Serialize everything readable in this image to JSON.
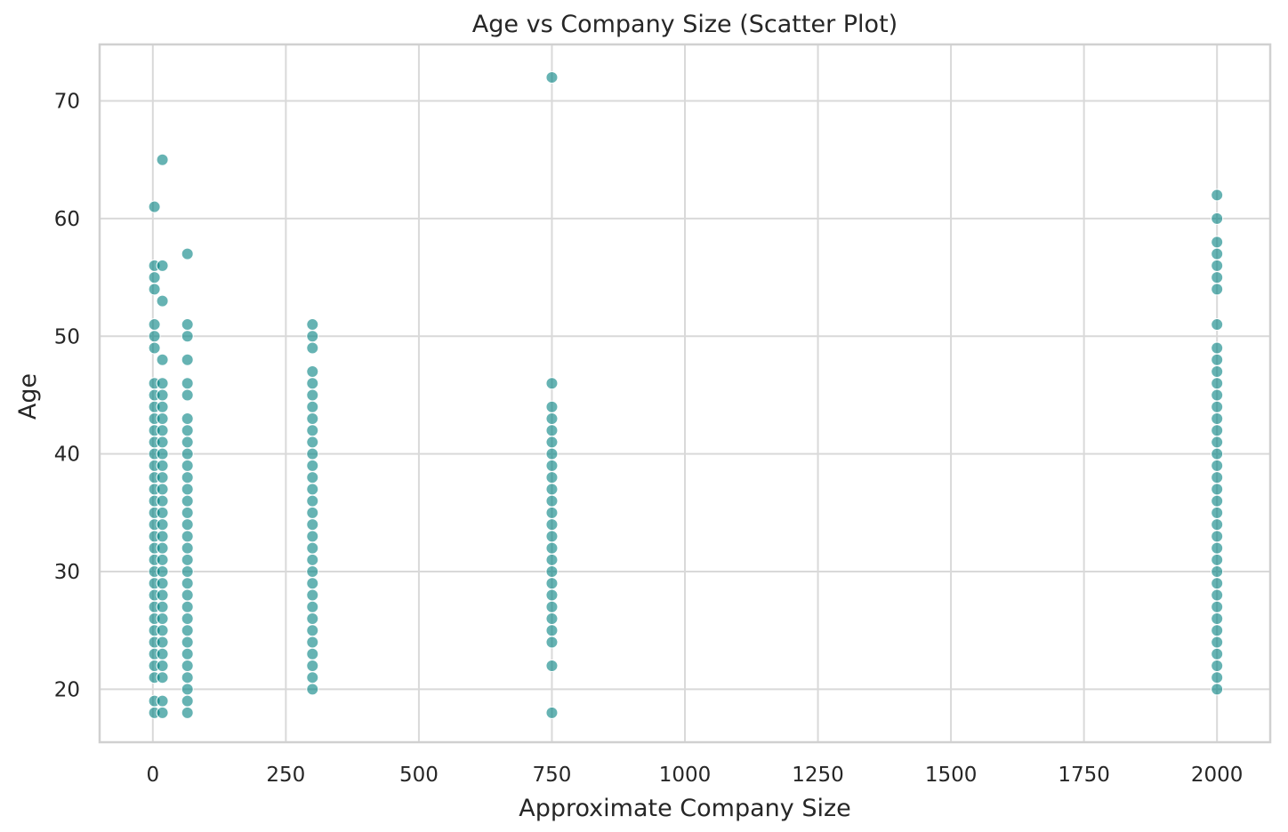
{
  "chart_data": {
    "type": "scatter",
    "title": "Age vs Company Size (Scatter Plot)",
    "xlabel": "Approximate Company Size",
    "ylabel": "Age",
    "xlim": [
      -100,
      2100
    ],
    "ylim": [
      15.5,
      74.8
    ],
    "xticks": [
      0,
      250,
      500,
      750,
      1000,
      1250,
      1500,
      1750,
      2000
    ],
    "xtick_labels": [
      "0",
      "250",
      "500",
      "750",
      "1000",
      "1250",
      "1500",
      "1750",
      "2000"
    ],
    "yticks": [
      20,
      30,
      40,
      50,
      60,
      70
    ],
    "ytick_labels": [
      "20",
      "30",
      "40",
      "50",
      "60",
      "70"
    ],
    "grid": true,
    "point_color": "#008080",
    "point_opacity": 0.6,
    "series": [
      {
        "x": 3,
        "ages": [
          18,
          19,
          21,
          22,
          23,
          24,
          25,
          26,
          27,
          28,
          29,
          30,
          31,
          32,
          33,
          34,
          35,
          36,
          37,
          38,
          39,
          40,
          41,
          42,
          43,
          44,
          45,
          46,
          49,
          50,
          51,
          54,
          55,
          56,
          61
        ]
      },
      {
        "x": 18,
        "ages": [
          18,
          19,
          21,
          22,
          23,
          24,
          25,
          26,
          27,
          28,
          29,
          30,
          31,
          32,
          33,
          34,
          35,
          36,
          37,
          38,
          39,
          40,
          41,
          42,
          43,
          44,
          45,
          46,
          48,
          53,
          56,
          65
        ]
      },
      {
        "x": 65,
        "ages": [
          18,
          19,
          20,
          21,
          22,
          23,
          24,
          25,
          26,
          27,
          28,
          29,
          30,
          31,
          32,
          33,
          34,
          35,
          36,
          37,
          38,
          39,
          40,
          41,
          42,
          43,
          45,
          46,
          48,
          50,
          51,
          57
        ]
      },
      {
        "x": 300,
        "ages": [
          20,
          21,
          22,
          23,
          24,
          25,
          26,
          27,
          28,
          29,
          30,
          31,
          32,
          33,
          34,
          35,
          36,
          37,
          38,
          39,
          40,
          41,
          42,
          43,
          44,
          45,
          46,
          47,
          49,
          50,
          51
        ]
      },
      {
        "x": 750,
        "ages": [
          18,
          22,
          24,
          25,
          26,
          27,
          28,
          29,
          30,
          31,
          32,
          33,
          34,
          35,
          36,
          37,
          38,
          39,
          40,
          41,
          42,
          43,
          44,
          46,
          72
        ]
      },
      {
        "x": 2000,
        "ages": [
          20,
          21,
          22,
          23,
          24,
          25,
          26,
          27,
          28,
          29,
          30,
          31,
          32,
          33,
          34,
          35,
          36,
          37,
          38,
          39,
          40,
          41,
          42,
          43,
          44,
          45,
          46,
          47,
          48,
          49,
          51,
          54,
          55,
          56,
          57,
          58,
          60,
          62
        ]
      }
    ]
  }
}
